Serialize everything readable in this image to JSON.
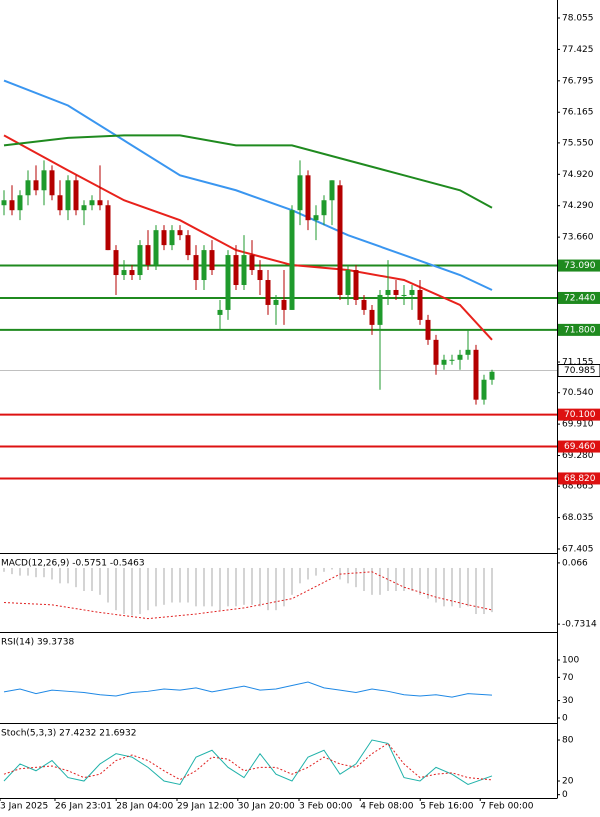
{
  "chart_data": {
    "type": "candlestick",
    "up_color": "#1f9a2c",
    "down_color": "#b40000",
    "ylim": [
      67.345,
      78.416
    ],
    "yticks": [
      78.055,
      77.425,
      76.795,
      76.165,
      {
        "value": 75.55,
        "label": "75.550"
      },
      {
        "value": 74.92,
        "label": "74.920"
      },
      {
        "value": 74.29,
        "label": "74.290"
      },
      {
        "value": 73.66,
        "label": "73.660"
      },
      71.155,
      {
        "value": 70.54,
        "label": "70.540"
      },
      {
        "value": 69.91,
        "label": "69.910"
      },
      {
        "value": 69.28,
        "label": "69.280"
      },
      68.665,
      68.035,
      67.405
    ],
    "open": [
      74.3,
      74.4,
      74.2,
      74.5,
      74.8,
      74.6,
      75.0,
      74.5,
      74.2,
      74.8,
      74.2,
      74.3,
      74.4,
      74.3,
      73.4,
      72.9,
      73.0,
      72.9,
      73.5,
      73.1,
      73.8,
      73.5,
      73.8,
      73.7,
      73.3,
      72.8,
      73.4,
      72.1,
      72.2,
      73.3,
      72.7,
      73.3,
      73.0,
      72.8,
      72.3,
      72.4,
      72.2,
      74.2,
      74.9,
      74.0,
      74.1,
      74.4,
      74.7,
      72.5,
      73.0,
      72.4,
      72.2,
      71.9,
      72.5,
      72.6,
      72.5,
      72.5,
      72.6,
      72.0,
      71.6,
      71.1,
      71.2,
      71.2,
      71.3,
      71.4,
      70.4,
      70.8
    ],
    "high": [
      74.6,
      74.7,
      74.6,
      75.0,
      75.1,
      75.2,
      75.1,
      74.8,
      74.9,
      74.9,
      74.4,
      74.5,
      75.1,
      74.4,
      73.5,
      73.2,
      73.1,
      73.6,
      73.8,
      73.9,
      73.9,
      73.9,
      73.9,
      73.8,
      73.5,
      73.5,
      73.6,
      72.4,
      73.4,
      73.5,
      73.7,
      73.6,
      73.2,
      73.0,
      72.5,
      73.0,
      74.3,
      75.2,
      75.0,
      74.3,
      74.5,
      74.8,
      74.8,
      73.1,
      73.1,
      72.5,
      72.3,
      72.6,
      73.2,
      72.8,
      72.7,
      72.7,
      72.8,
      72.1,
      71.7,
      71.3,
      71.3,
      71.4,
      71.8,
      71.5,
      70.9,
      71.0
    ],
    "low": [
      74.1,
      74.1,
      74.0,
      74.3,
      74.5,
      74.3,
      74.4,
      74.1,
      74.0,
      74.1,
      73.9,
      74.2,
      74.2,
      73.4,
      72.5,
      72.8,
      72.8,
      72.8,
      73.0,
      73.0,
      73.4,
      73.4,
      73.6,
      73.2,
      72.6,
      72.6,
      72.9,
      71.8,
      72.0,
      72.6,
      72.6,
      72.9,
      72.5,
      72.1,
      71.9,
      71.9,
      72.2,
      73.9,
      73.8,
      73.6,
      73.9,
      73.9,
      72.4,
      72.3,
      72.3,
      72.1,
      71.7,
      70.6,
      72.3,
      72.4,
      72.3,
      72.2,
      71.9,
      71.5,
      70.9,
      71.0,
      71.1,
      71.0,
      71.2,
      70.3,
      70.3,
      70.7
    ],
    "close": [
      74.4,
      74.2,
      74.5,
      74.8,
      74.6,
      75.0,
      74.5,
      74.2,
      74.8,
      74.2,
      74.3,
      74.4,
      74.3,
      73.4,
      72.9,
      73.0,
      72.9,
      73.5,
      73.1,
      73.8,
      73.5,
      73.8,
      73.7,
      73.3,
      72.8,
      73.4,
      73.0,
      72.2,
      73.3,
      72.7,
      73.3,
      73.0,
      72.8,
      72.3,
      72.4,
      72.2,
      74.2,
      74.9,
      74.0,
      74.1,
      74.4,
      74.8,
      72.5,
      73.0,
      72.4,
      72.2,
      71.9,
      72.5,
      72.6,
      72.5,
      72.5,
      72.6,
      72.0,
      71.6,
      71.1,
      71.2,
      71.2,
      71.3,
      71.4,
      70.4,
      70.8,
      70.96
    ],
    "moving_averages": [
      {
        "color": "#e8221c",
        "x": [
          0,
          8,
          15,
          22,
          29,
          36,
          43,
          50,
          57,
          61
        ],
        "values": [
          75.7,
          75.0,
          74.4,
          74.0,
          73.4,
          73.1,
          73.0,
          72.8,
          72.3,
          71.6
        ]
      },
      {
        "color": "#3a96f0",
        "x": [
          0,
          8,
          15,
          22,
          29,
          36,
          43,
          50,
          57,
          61
        ],
        "values": [
          76.8,
          76.3,
          75.6,
          74.9,
          74.6,
          74.2,
          73.7,
          73.3,
          72.9,
          72.6
        ]
      },
      {
        "color": "#1f8a1f",
        "x": [
          0,
          8,
          15,
          22,
          29,
          36,
          43,
          50,
          57,
          61
        ],
        "values": [
          75.5,
          75.65,
          75.7,
          75.7,
          75.5,
          75.5,
          75.2,
          74.9,
          74.6,
          74.25
        ]
      }
    ],
    "levels": [
      {
        "value": 73.09,
        "label": "73.090",
        "color": "#1f8a1f"
      },
      {
        "value": 72.44,
        "label": "72.440",
        "color": "#1f8a1f"
      },
      {
        "value": 71.8,
        "label": "71.800",
        "color": "#1f8a1f"
      },
      {
        "value": 70.1,
        "label": "70.100",
        "color": "#dd1111"
      },
      {
        "value": 69.46,
        "label": "69.460",
        "color": "#dd1111"
      },
      {
        "value": 68.82,
        "label": "68.820",
        "color": "#dd1111"
      }
    ],
    "current_price": 70.985,
    "time_labels": {
      "x": [
        -0.125,
        6.75,
        14.4,
        22,
        29.6,
        37.25,
        44.9,
        52.4,
        59.9
      ],
      "labels": [
        "3 Jan 2025",
        "26 Jan 23:01",
        "28 Jan 04:00",
        "29 Jan 12:00",
        "30 Jan 20:00",
        "3 Feb 00:00",
        "4 Feb 08:00",
        "5 Feb 16:00",
        "7 Feb 00:00"
      ]
    },
    "indicators": [
      {
        "title": "MACD(12,26,9) -0.5751 -0.5463",
        "ylim": [
          -0.821,
          0.169
        ],
        "yticks": [
          0.066,
          -0.7314
        ],
        "histogram_color": "#b8b8b8",
        "histogram": [
          -0.05,
          -0.08,
          -0.1,
          -0.1,
          -0.12,
          -0.12,
          -0.15,
          -0.2,
          -0.2,
          -0.25,
          -0.3,
          -0.3,
          -0.35,
          -0.45,
          -0.55,
          -0.6,
          -0.62,
          -0.6,
          -0.55,
          -0.5,
          -0.48,
          -0.45,
          -0.45,
          -0.45,
          -0.5,
          -0.5,
          -0.5,
          -0.55,
          -0.5,
          -0.5,
          -0.48,
          -0.48,
          -0.5,
          -0.55,
          -0.55,
          -0.5,
          -0.35,
          -0.2,
          -0.15,
          -0.1,
          -0.05,
          -0.02,
          -0.15,
          -0.2,
          -0.25,
          -0.3,
          -0.35,
          -0.35,
          -0.3,
          -0.3,
          -0.3,
          -0.3,
          -0.35,
          -0.4,
          -0.45,
          -0.5,
          -0.5,
          -0.52,
          -0.5,
          -0.6,
          -0.6,
          -0.5751
        ],
        "lines": [
          {
            "color": "#e02020",
            "dash": true,
            "x": [
              0,
              6,
              12,
              18,
              24,
              30,
              36,
              42,
              46,
              50,
              54,
              58,
              61
            ],
            "values": [
              -0.45,
              -0.48,
              -0.58,
              -0.66,
              -0.6,
              -0.52,
              -0.4,
              -0.08,
              -0.05,
              -0.25,
              -0.38,
              -0.48,
              -0.5463
            ]
          }
        ]
      },
      {
        "title": "RSI(14) 39.3738",
        "ylim": [
          -6.9,
          144.8
        ],
        "yticks": [
          100,
          70,
          30,
          0
        ],
        "lines": [
          {
            "color": "#1e88e5",
            "dash": false,
            "x": [
              0,
              2,
              4,
              6,
              8,
              10,
              12,
              14,
              16,
              18,
              20,
              22,
              24,
              26,
              28,
              30,
              32,
              34,
              36,
              38,
              40,
              42,
              44,
              46,
              48,
              50,
              52,
              54,
              56,
              58,
              61
            ],
            "values": [
              45,
              50,
              42,
              48,
              46,
              44,
              40,
              38,
              44,
              46,
              50,
              48,
              52,
              45,
              50,
              55,
              48,
              50,
              56,
              62,
              52,
              48,
              44,
              50,
              46,
              40,
              38,
              40,
              36,
              42,
              39.3738
            ]
          }
        ]
      },
      {
        "title": "Stoch(5,3,3) 27.4232 21.6932",
        "ylim": [
          -3.4,
          102
        ],
        "yticks": [
          80,
          20,
          0
        ],
        "lines": [
          {
            "color": "#20b2aa",
            "dash": false,
            "x": [
              0,
              2,
              4,
              6,
              8,
              10,
              12,
              14,
              16,
              18,
              20,
              22,
              24,
              26,
              28,
              30,
              32,
              34,
              36,
              38,
              40,
              42,
              44,
              46,
              48,
              50,
              52,
              54,
              56,
              58,
              61
            ],
            "values": [
              20,
              45,
              35,
              50,
              25,
              20,
              45,
              60,
              55,
              40,
              20,
              15,
              55,
              65,
              40,
              25,
              60,
              30,
              20,
              55,
              65,
              30,
              45,
              80,
              75,
              25,
              20,
              40,
              30,
              15,
              27.4232
            ]
          },
          {
            "color": "#e02020",
            "dash": true,
            "x": [
              0,
              2,
              4,
              6,
              8,
              10,
              12,
              14,
              16,
              18,
              20,
              22,
              24,
              26,
              28,
              30,
              32,
              34,
              36,
              38,
              40,
              42,
              44,
              46,
              48,
              50,
              52,
              54,
              56,
              58,
              61
            ],
            "values": [
              30,
              38,
              40,
              42,
              35,
              25,
              30,
              50,
              58,
              50,
              35,
              22,
              35,
              55,
              52,
              35,
              40,
              40,
              30,
              40,
              55,
              45,
              40,
              60,
              75,
              45,
              25,
              30,
              32,
              25,
              21.6932
            ]
          }
        ]
      }
    ]
  }
}
